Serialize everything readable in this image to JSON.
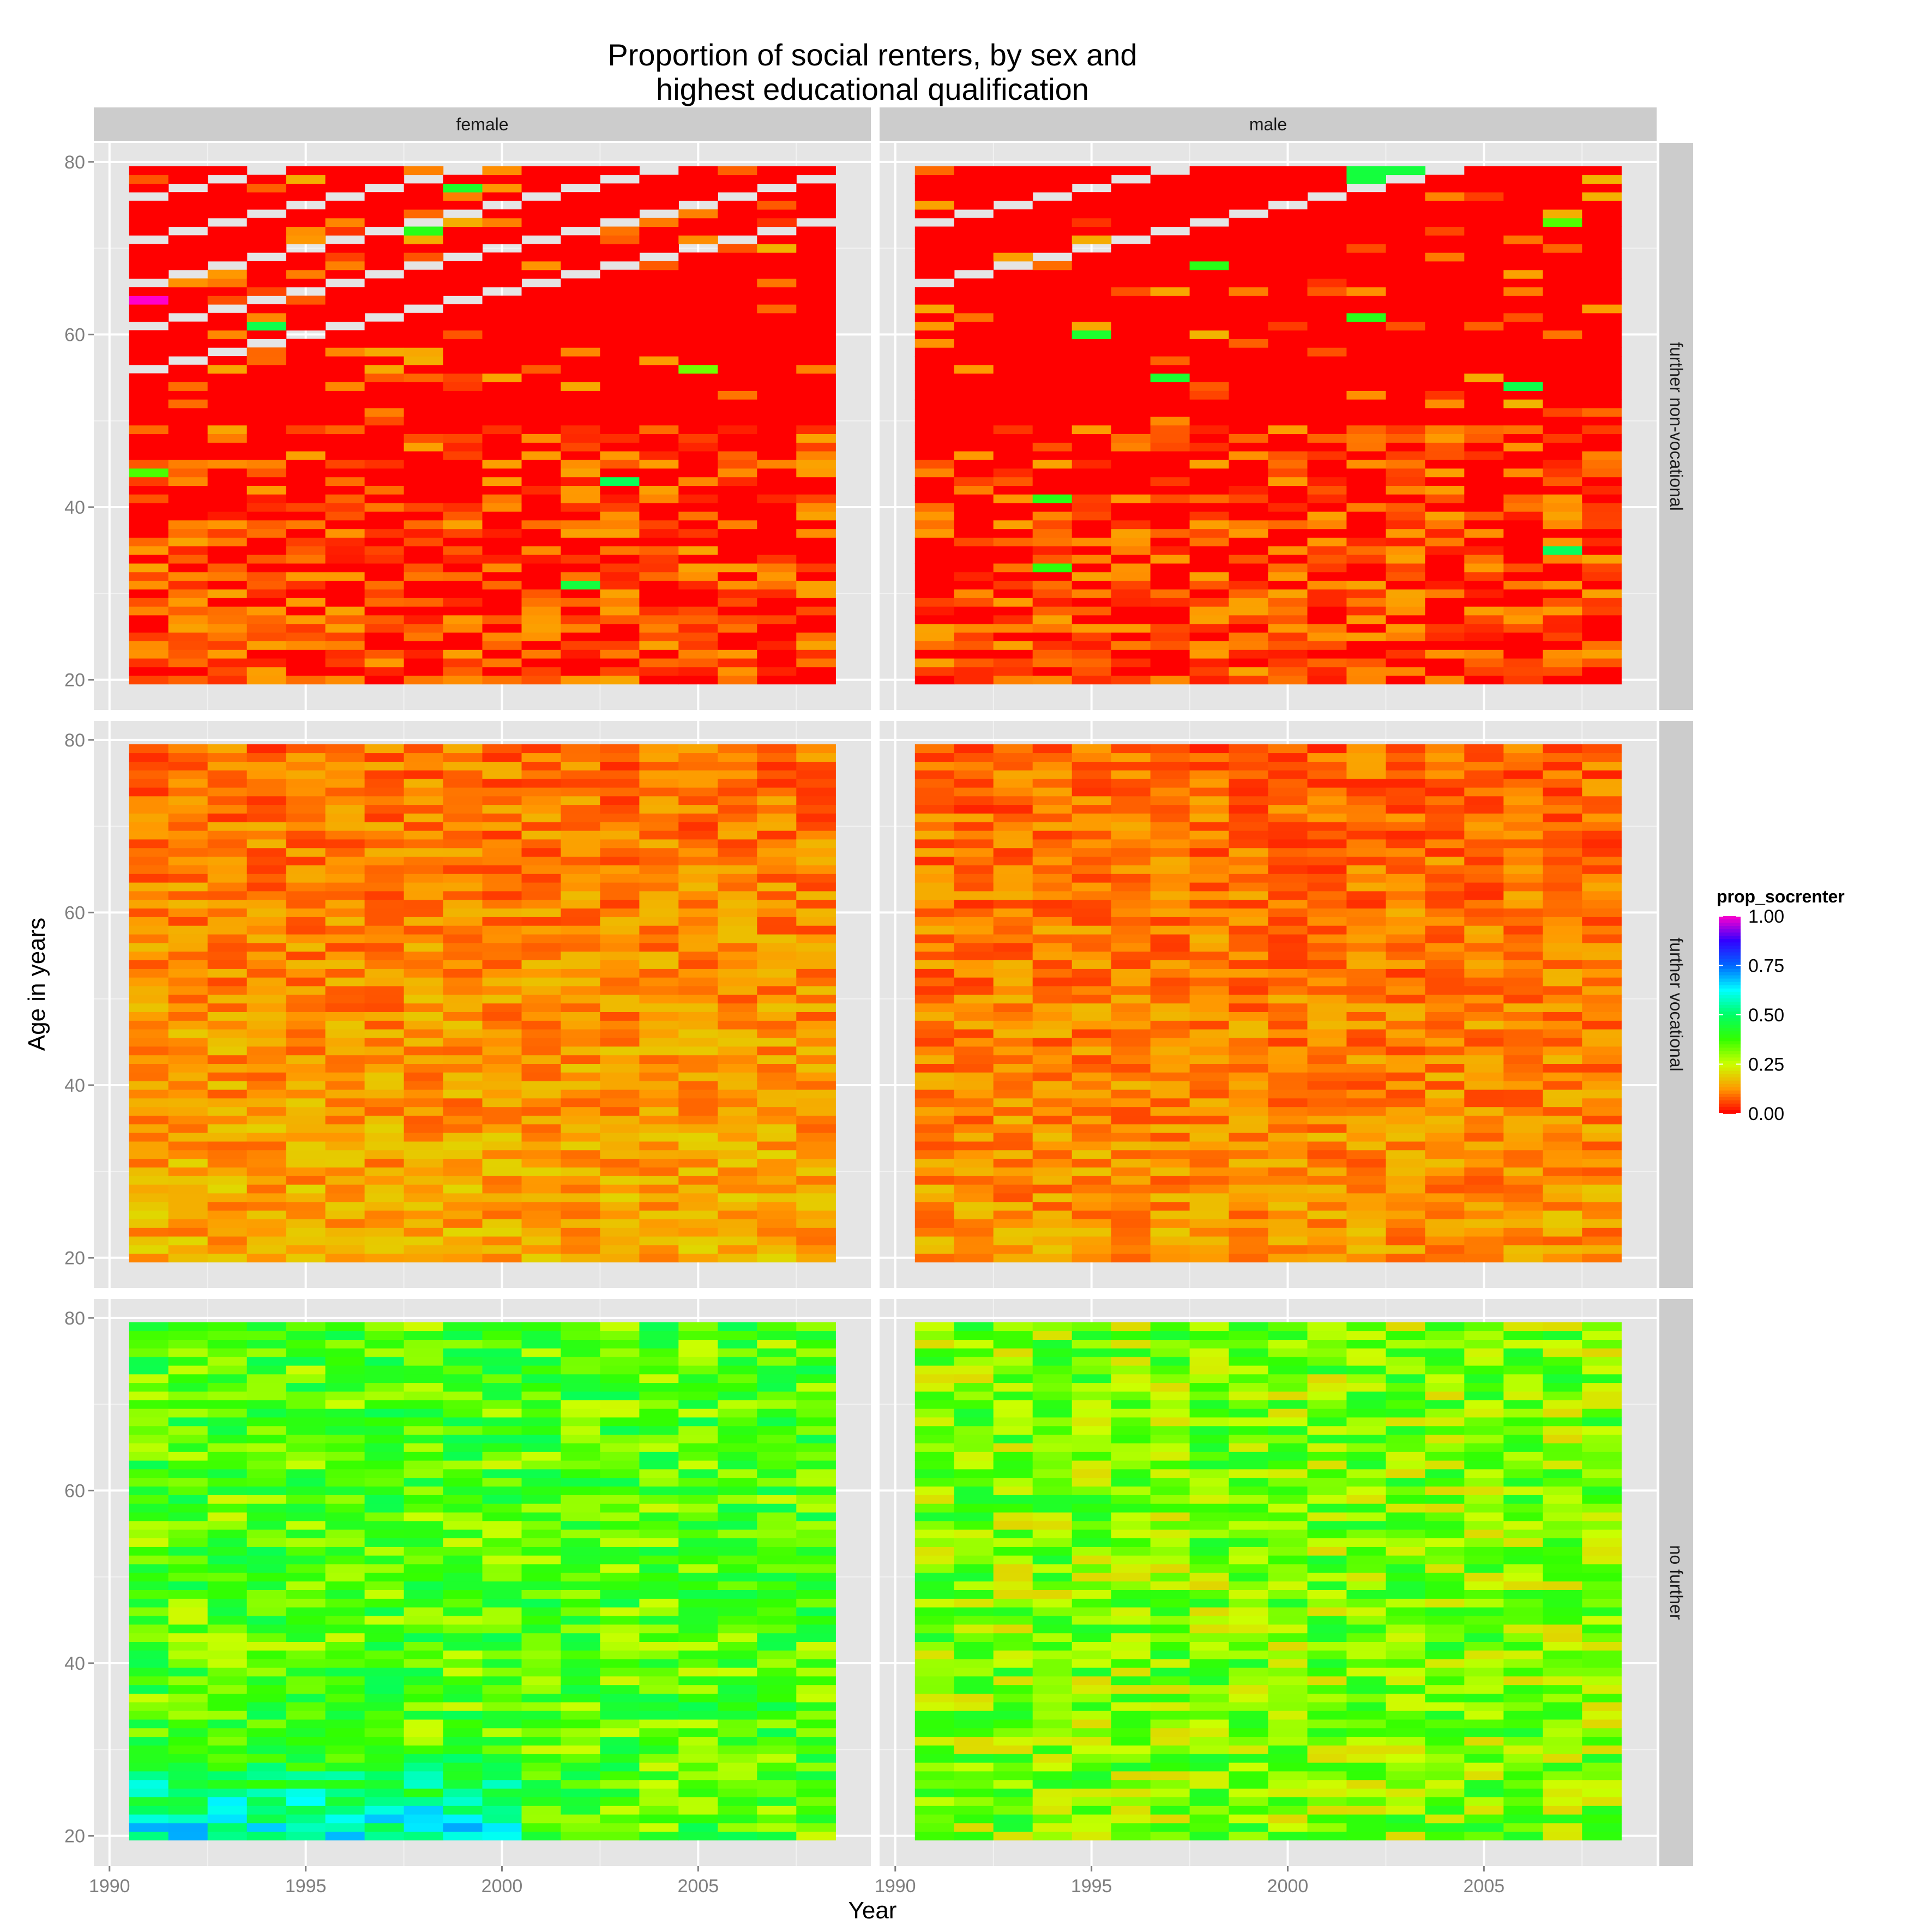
{
  "chart_data": {
    "type": "heatmap",
    "title_lines": [
      "Proportion of social renters, by sex and",
      "highest educational qualification"
    ],
    "xlabel": "Year",
    "ylabel": "Age in years",
    "x_ticks": [
      1990,
      1995,
      2000,
      2005
    ],
    "x_tick_labels": [
      "1990",
      "1995",
      "2000",
      "2005"
    ],
    "y_ticks": [
      20,
      40,
      60,
      80
    ],
    "y_tick_labels": [
      "20",
      "40",
      "60",
      "80"
    ],
    "xlim": [
      1989.6,
      2009.4
    ],
    "ylim": [
      16.5,
      82.2
    ],
    "years": [
      1991,
      1992,
      1993,
      1994,
      1995,
      1996,
      1997,
      1998,
      1999,
      2000,
      2001,
      2002,
      2003,
      2004,
      2005,
      2006,
      2007,
      2008
    ],
    "age_range": [
      20,
      79
    ],
    "grid": true,
    "column_facets": [
      {
        "key": "female",
        "label": "female"
      },
      {
        "key": "male",
        "label": "male"
      }
    ],
    "row_facets": [
      {
        "key": "nonvoc",
        "label": "further non-vocational"
      },
      {
        "key": "voc",
        "label": "further vocational"
      },
      {
        "key": "nofurther",
        "label": "no further"
      }
    ],
    "legend": {
      "title": "prop_socrenter",
      "placement": "right",
      "breaks": [
        1.0,
        0.75,
        0.5,
        0.25,
        0.0
      ],
      "break_labels": [
        "1.00",
        "0.75",
        "0.50",
        "0.25",
        "0.00"
      ]
    },
    "color_scale": {
      "type": "rainbow",
      "stops": [
        {
          "value": 0.0,
          "color": "#ff0000"
        },
        {
          "value": 0.125,
          "color": "#ff9900"
        },
        {
          "value": 0.25,
          "color": "#ccff00"
        },
        {
          "value": 0.375,
          "color": "#33ff00"
        },
        {
          "value": 0.5,
          "color": "#00ff66"
        },
        {
          "value": 0.625,
          "color": "#00ffff"
        },
        {
          "value": 0.75,
          "color": "#0066ff"
        },
        {
          "value": 0.875,
          "color": "#3300ff"
        },
        {
          "value": 1.0,
          "color": "#ff00cc"
        }
      ]
    },
    "panel_summary": [
      {
        "row": "nonvoc",
        "col": "female",
        "typical_value": 0.03,
        "notes": "mostly 0.00 (red) with patches of 0.05-0.15 at ages 20-50; sparse missing cohort diagonals at upper ages"
      },
      {
        "row": "nonvoc",
        "col": "male",
        "typical_value": 0.02,
        "notes": "mostly 0.00 (red); a few green cells near age 79 around 2002-2003"
      },
      {
        "row": "voc",
        "col": "female",
        "typical_value": 0.12,
        "notes": "orange to yellow, ~0.05-0.2"
      },
      {
        "row": "voc",
        "col": "male",
        "typical_value": 0.1,
        "notes": "orange to yellow, ~0.05-0.2"
      },
      {
        "row": "nofurther",
        "col": "female",
        "typical_value": 0.38,
        "notes": "green, higher (blue/magenta, ~0.6-1.0) at ages 20-30 in the 1990s"
      },
      {
        "row": "nofurther",
        "col": "male",
        "typical_value": 0.33,
        "notes": "green to yellow, ~0.2-0.5"
      }
    ]
  },
  "colors": {
    "panel_background": "#e5e5e5",
    "grid_major": "#ffffff",
    "strip_background": "#cccccc",
    "missing": "#e5e5e5"
  }
}
